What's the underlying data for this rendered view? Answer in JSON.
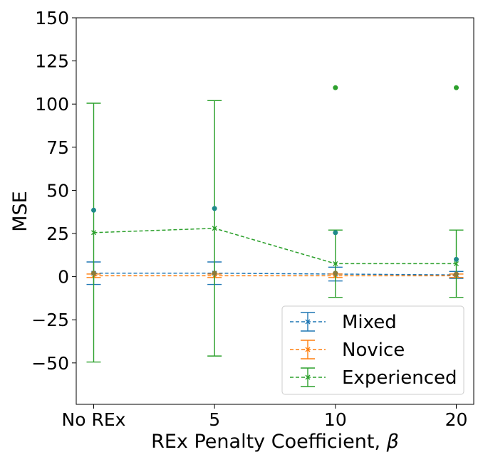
{
  "chart_data": {
    "type": "line",
    "xlabel": "REx Penalty Coefficient, ",
    "xlabel_symbol": "β",
    "ylabel": "MSE",
    "categories": [
      "No REx",
      "5",
      "10",
      "20"
    ],
    "ylim": [
      -74,
      150
    ],
    "yticks": [
      -50,
      -25,
      0,
      25,
      50,
      75,
      100,
      125,
      150
    ],
    "ytick_labels": [
      "−50",
      "−25",
      "0",
      "25",
      "50",
      "75",
      "100",
      "125",
      "150"
    ],
    "grid": false,
    "legend": "bottom-right",
    "series": [
      {
        "name": "Mixed",
        "color": "#1f77b4",
        "values": [
          2.0,
          2.0,
          1.5,
          1.0
        ],
        "err_low": [
          -4.5,
          -4.5,
          -2.5,
          -1.0
        ],
        "err_high": [
          8.5,
          8.5,
          5.5,
          3.0
        ]
      },
      {
        "name": "Novice",
        "color": "#ff7f0e",
        "values": [
          0.5,
          0.5,
          0.5,
          0.5
        ],
        "err_low": [
          -0.5,
          -0.5,
          -0.5,
          -0.5
        ],
        "err_high": [
          1.5,
          1.5,
          1.5,
          1.5
        ]
      },
      {
        "name": "Experienced",
        "color": "#2ca02c",
        "values": [
          25.5,
          28.0,
          7.5,
          7.5
        ],
        "err_low": [
          -49.5,
          -46.0,
          -12.0,
          -12.0
        ],
        "err_high": [
          100.5,
          102.0,
          27.0,
          27.0
        ]
      }
    ],
    "dots": [
      {
        "x": 0,
        "y": 38.5,
        "color": "#1f8a8a"
      },
      {
        "x": 1,
        "y": 39.5,
        "color": "#1f8a8a"
      },
      {
        "x": 2,
        "y": 25.5,
        "color": "#1f8a8a"
      },
      {
        "x": 3,
        "y": 10.0,
        "color": "#1f8a8a"
      },
      {
        "x": 2,
        "y": 109.5,
        "color": "#2ca02c"
      },
      {
        "x": 3,
        "y": 109.5,
        "color": "#2ca02c"
      },
      {
        "x": 0,
        "y": 2.0,
        "color": "#8a7a3a"
      },
      {
        "x": 1,
        "y": 2.0,
        "color": "#8a7a3a"
      },
      {
        "x": 2,
        "y": 2.0,
        "color": "#8a7a3a"
      },
      {
        "x": 3,
        "y": 1.5,
        "color": "#8a7a3a"
      }
    ]
  }
}
